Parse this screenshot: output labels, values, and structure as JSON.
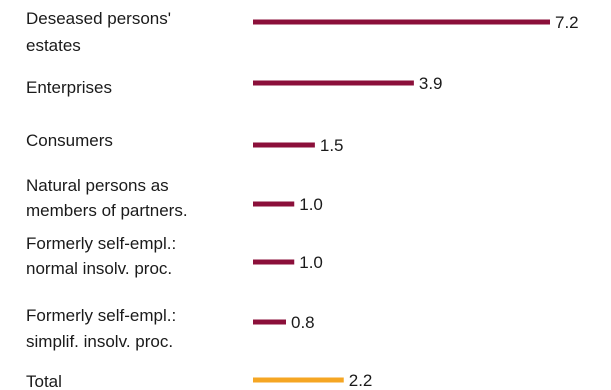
{
  "chart_data": {
    "type": "bar",
    "orientation": "horizontal",
    "title": "",
    "xlabel": "",
    "ylabel": "",
    "grid": false,
    "xlim": [
      0,
      7.2
    ],
    "categories": [
      [
        "Deseased persons'",
        "estates"
      ],
      [
        "Enterprises"
      ],
      [
        "Consumers"
      ],
      [
        "Natural persons as",
        "members of partners."
      ],
      [
        "Formerly self-empl.:",
        "normal insolv. proc."
      ],
      [
        "Formerly self-empl.:",
        "simplif. insolv. proc."
      ],
      [
        "Total"
      ]
    ],
    "values": [
      7.2,
      3.9,
      1.5,
      1.0,
      1.0,
      0.8,
      2.2
    ],
    "value_labels": [
      "7.2",
      "3.9",
      "1.5",
      "1.0",
      "1.0",
      "0.8",
      "2.2"
    ],
    "colors": [
      "#8b0f3a",
      "#8b0f3a",
      "#8b0f3a",
      "#8b0f3a",
      "#8b0f3a",
      "#8b0f3a",
      "#f5a623"
    ]
  }
}
